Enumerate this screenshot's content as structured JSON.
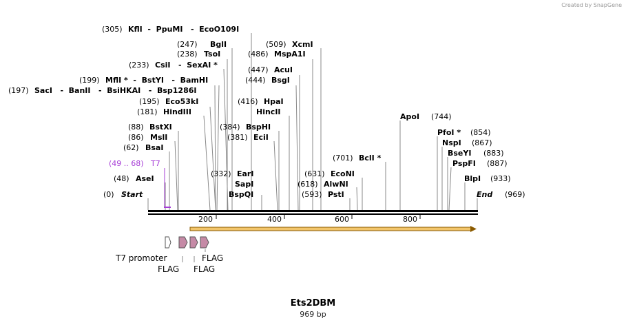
{
  "credit": "Created by SnapGene",
  "map": {
    "title": "Ets2DBM",
    "length_label": "969 bp",
    "start_label": "Start",
    "start_pos": "(0)",
    "end_label": "End",
    "end_pos": "(969)",
    "ticks": [
      "200",
      "400",
      "600",
      "800"
    ],
    "primer": {
      "pos": "(49 .. 68)",
      "name": "T7"
    },
    "features": {
      "promoter": "T7 promoter",
      "flag1": "FLAG",
      "flag2": "FLAG",
      "flag3": "FLAG"
    }
  },
  "sites": [
    {
      "pos": "(305)",
      "names": "KflI  -  PpuMI   -  EcoO109I"
    },
    {
      "pos": "(247)",
      "names": "BglI"
    },
    {
      "pos": "(238)",
      "names": "TsoI"
    },
    {
      "pos": "(233)",
      "names": "CsiI   -  SexAI *"
    },
    {
      "pos": "(199)",
      "names": "MflI *  -  BstYI   -  BamHI"
    },
    {
      "pos": "(197)",
      "names": "SacI   -  BanII   -  BsiHKAI   -  Bsp1286I"
    },
    {
      "pos": "(195)",
      "names": "Eco53kI"
    },
    {
      "pos": "(181)",
      "names": "HindIII"
    },
    {
      "pos": "(88)",
      "names": "BstXI"
    },
    {
      "pos": "(86)",
      "names": "MslI"
    },
    {
      "pos": "(62)",
      "names": "BsaI"
    },
    {
      "pos": "(48)",
      "names": "AseI"
    },
    {
      "pos": "(509)",
      "names": "XcmI"
    },
    {
      "pos": "(486)",
      "names": "MspA1I"
    },
    {
      "pos": "(447)",
      "names": "AcuI"
    },
    {
      "pos": "(444)",
      "names": "BsgI"
    },
    {
      "pos": "(416)",
      "names": "HpaI"
    },
    {
      "pos": "",
      "names": "HincII"
    },
    {
      "pos": "(384)",
      "names": "BspHI"
    },
    {
      "pos": "(381)",
      "names": "EciI"
    },
    {
      "pos": "(332)",
      "names": "EarI"
    },
    {
      "pos": "",
      "names": "SapI"
    },
    {
      "pos": "",
      "names": "BspQI"
    },
    {
      "pos": "(701)",
      "names": "BclI *"
    },
    {
      "pos": "(631)",
      "names": "EcoNI"
    },
    {
      "pos": "(618)",
      "names": "AlwNI"
    },
    {
      "pos": "(593)",
      "names": "PstI"
    },
    {
      "pos": "(744)",
      "names": "ApoI"
    },
    {
      "pos": "(854)",
      "names": "PfoI *"
    },
    {
      "pos": "(867)",
      "names": "NspI"
    },
    {
      "pos": "(883)",
      "names": "BseYI"
    },
    {
      "pos": "(887)",
      "names": "PspFI"
    },
    {
      "pos": "(933)",
      "names": "BlpI"
    }
  ]
}
